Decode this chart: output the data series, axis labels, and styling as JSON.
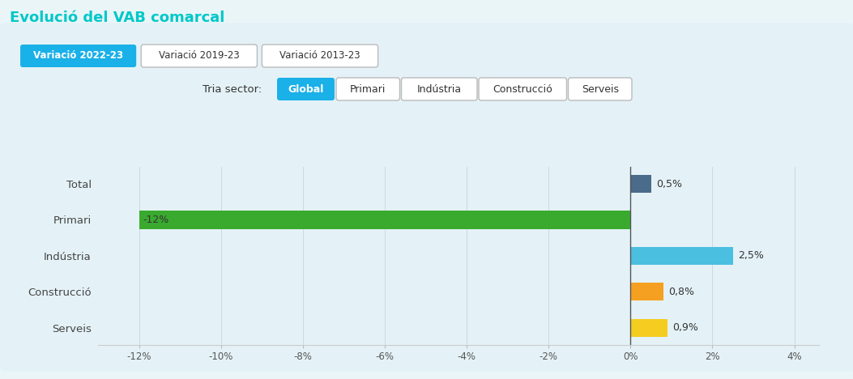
{
  "title": "Evolució del VAB comarcal",
  "title_color": "#00c8c8",
  "page_bg": "#eaf5f8",
  "chart_bg": "#e4f2f7",
  "categories": [
    "Total",
    "Primari",
    "Indústria",
    "Construcció",
    "Serveis"
  ],
  "values": [
    0.5,
    -12.0,
    2.5,
    0.8,
    0.9
  ],
  "bar_colors": [
    "#4a6b8a",
    "#39aa2e",
    "#4bbfe0",
    "#f5a020",
    "#f5cc20"
  ],
  "xlim": [
    -13.0,
    4.6
  ],
  "xticks": [
    -12,
    -10,
    -8,
    -6,
    -4,
    -2,
    0,
    2,
    4
  ],
  "xtick_labels": [
    "-12%",
    "-10%",
    "-8%",
    "-6%",
    "-4%",
    "-2%",
    "0%",
    "2%",
    "4%"
  ],
  "value_labels": [
    "0,5%",
    "-12%",
    "2,5%",
    "0,8%",
    "0,9%"
  ],
  "bar_height": 0.5,
  "tab_labels": [
    "Variació 2022-23",
    "Variació 2019-23",
    "Variació 2013-23"
  ],
  "tab_active_bg": "#1ab0e8",
  "tab_inactive_bg": "#ffffff",
  "tab_active_text": "#ffffff",
  "tab_inactive_text": "#333333",
  "sector_label": "Tria sector:",
  "sector_buttons": [
    "Global",
    "Primari",
    "Indústria",
    "Construcció",
    "Serveis"
  ],
  "sector_active_bg": "#1ab0e8",
  "sector_inactive_bg": "#ffffff",
  "sector_active_text": "#ffffff",
  "sector_inactive_text": "#333333"
}
